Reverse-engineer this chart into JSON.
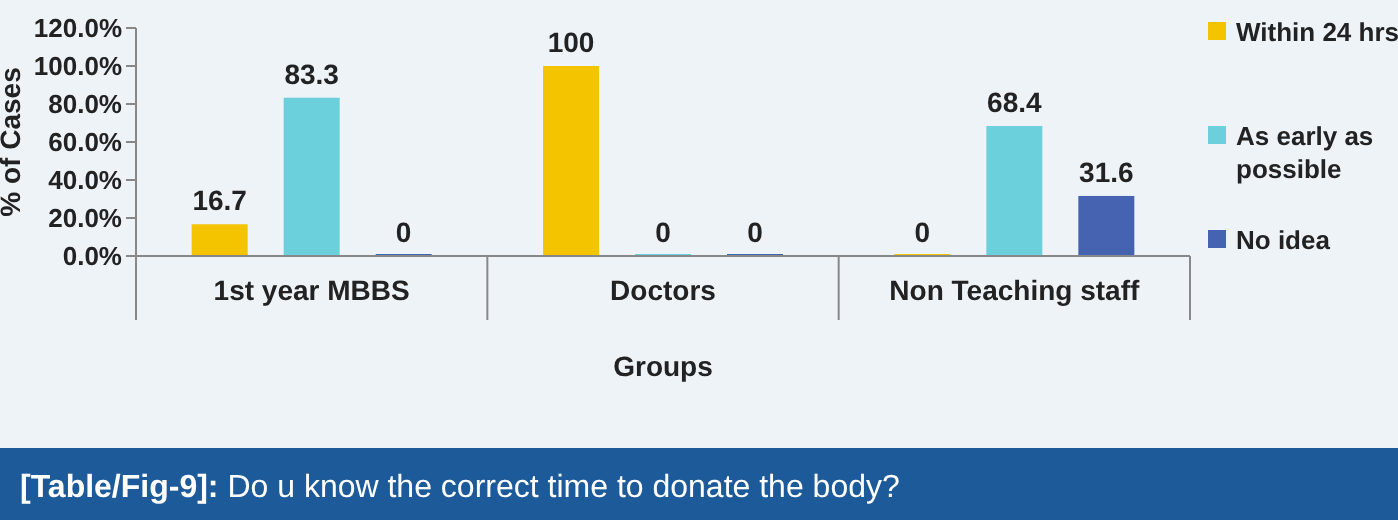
{
  "chart_data": {
    "type": "bar",
    "ylabel": "% of Cases",
    "xlabel": "Groups",
    "categories": [
      "1st year MBBS",
      "Doctors",
      "Non Teaching staff"
    ],
    "series": [
      {
        "name": "Within 24 hrs",
        "color": "#f5c400",
        "values": [
          16.7,
          100,
          0
        ]
      },
      {
        "name": "As early as possible",
        "color": "#6ccfdc",
        "values": [
          83.3,
          0,
          68.4
        ]
      },
      {
        "name": "No idea",
        "color": "#4563b0",
        "values": [
          0,
          0,
          31.6
        ]
      }
    ],
    "ylim": [
      0,
      120
    ],
    "yticks": [
      {
        "value": 0,
        "label": "0.0%"
      },
      {
        "value": 20,
        "label": "20.0%"
      },
      {
        "value": 40,
        "label": "40.0%"
      },
      {
        "value": 60,
        "label": "60.0%"
      },
      {
        "value": 80,
        "label": "80.0%"
      },
      {
        "value": 100,
        "label": "100.0%"
      },
      {
        "value": 120,
        "label": "120.0%"
      }
    ],
    "data_labels": true,
    "legend": "right",
    "grid": false,
    "annotations": [
      "[Table/Fig-9]: Do u know the correct time to donate the body?"
    ]
  }
}
